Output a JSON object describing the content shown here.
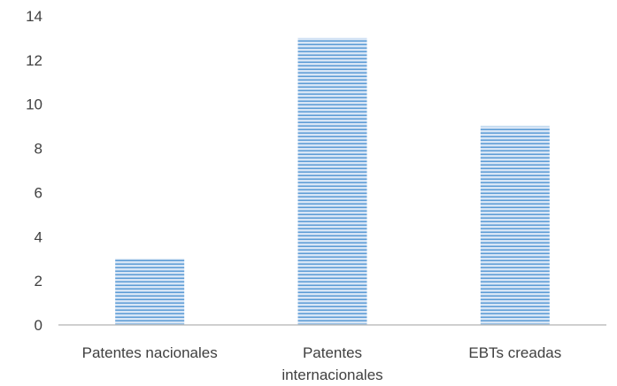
{
  "chart_data": {
    "type": "bar",
    "title": "",
    "xlabel": "",
    "ylabel": "",
    "categories": [
      [
        "Patentes nacionales"
      ],
      [
        "Patentes",
        "internacionales"
      ],
      [
        "EBTs creadas"
      ]
    ],
    "values": [
      3,
      13,
      9
    ],
    "ylim": [
      0,
      14
    ],
    "yticks": [
      0,
      2,
      4,
      6,
      8,
      10,
      12,
      14
    ],
    "grid": false,
    "legend": "none",
    "colors": {
      "bar_fill": "#dde9f7",
      "bar_stripe": "#5b9bd5",
      "axis": "#bfbfbf",
      "text": "#404040"
    }
  }
}
